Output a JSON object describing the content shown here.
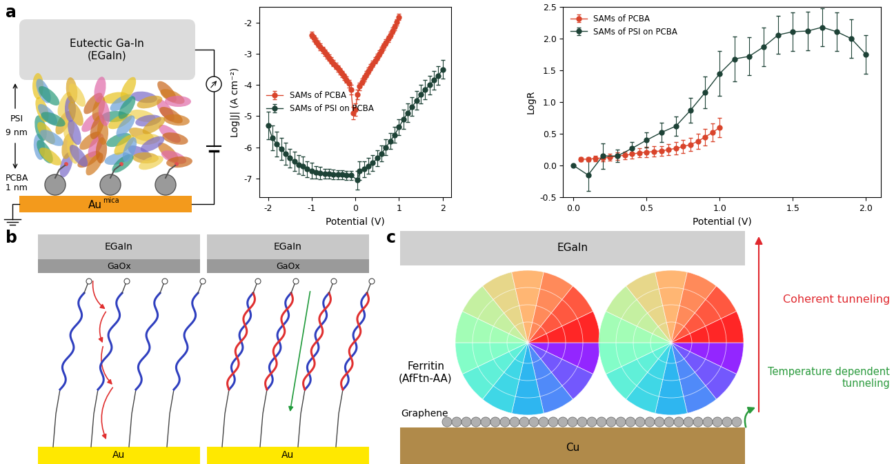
{
  "panel_labels": [
    "a",
    "b",
    "c"
  ],
  "chart_data": [
    {
      "type": "line",
      "xlabel": "Potential (V)",
      "ylabel": "Log|J| (A cm⁻²)",
      "xlim": [
        -2.2,
        2.2
      ],
      "xticks": [
        -2,
        -1,
        0,
        1,
        2
      ],
      "ylim": [
        -7.6,
        -1.5
      ],
      "yticks": [
        -7,
        -6,
        -5,
        -4,
        -3,
        -2
      ],
      "legend": "center left",
      "series": [
        {
          "name": "SAMs of PCBA",
          "color": "#d9442b",
          "marker": "circle",
          "line_style": "solid",
          "x": [
            -1.0,
            -0.95,
            -0.9,
            -0.85,
            -0.8,
            -0.75,
            -0.7,
            -0.65,
            -0.6,
            -0.55,
            -0.5,
            -0.45,
            -0.4,
            -0.35,
            -0.3,
            -0.25,
            -0.2,
            -0.15,
            -0.1,
            -0.05,
            0.0,
            0.05,
            0.1,
            0.15,
            0.2,
            0.25,
            0.3,
            0.35,
            0.4,
            0.45,
            0.5,
            0.55,
            0.6,
            0.65,
            0.7,
            0.75,
            0.8,
            0.85,
            0.9,
            0.95,
            1.0
          ],
          "values": [
            -2.4,
            -2.5,
            -2.6,
            -2.69,
            -2.78,
            -2.87,
            -2.96,
            -3.05,
            -3.13,
            -3.22,
            -3.3,
            -3.39,
            -3.47,
            -3.56,
            -3.65,
            -3.74,
            -3.84,
            -3.96,
            -4.15,
            -4.9,
            -4.8,
            -4.3,
            -4.05,
            -3.9,
            -3.78,
            -3.66,
            -3.55,
            -3.44,
            -3.33,
            -3.22,
            -3.11,
            -3.0,
            -2.88,
            -2.76,
            -2.64,
            -2.52,
            -2.4,
            -2.27,
            -2.14,
            -1.99,
            -1.82
          ],
          "errors": [
            0.1,
            0.1,
            0.1,
            0.1,
            0.1,
            0.1,
            0.1,
            0.1,
            0.1,
            0.1,
            0.1,
            0.1,
            0.1,
            0.1,
            0.1,
            0.1,
            0.1,
            0.12,
            0.15,
            0.2,
            0.2,
            0.15,
            0.12,
            0.1,
            0.1,
            0.1,
            0.1,
            0.1,
            0.1,
            0.1,
            0.1,
            0.1,
            0.1,
            0.1,
            0.1,
            0.1,
            0.1,
            0.1,
            0.1,
            0.1,
            0.1
          ]
        },
        {
          "name": "SAMs of PSI on PCBA",
          "color": "#1d4236",
          "marker": "circle",
          "line_style": "solid",
          "x": [
            -2.0,
            -1.9,
            -1.8,
            -1.7,
            -1.6,
            -1.5,
            -1.4,
            -1.3,
            -1.2,
            -1.1,
            -1.0,
            -0.9,
            -0.8,
            -0.7,
            -0.6,
            -0.5,
            -0.4,
            -0.3,
            -0.2,
            -0.1,
            0.05,
            0.1,
            0.2,
            0.3,
            0.4,
            0.5,
            0.6,
            0.7,
            0.8,
            0.9,
            1.0,
            1.1,
            1.2,
            1.3,
            1.4,
            1.5,
            1.6,
            1.7,
            1.8,
            1.9,
            2.0
          ],
          "values": [
            -5.3,
            -5.7,
            -5.9,
            -6.05,
            -6.2,
            -6.35,
            -6.45,
            -6.55,
            -6.6,
            -6.7,
            -6.75,
            -6.8,
            -6.82,
            -6.85,
            -6.85,
            -6.87,
            -6.88,
            -6.88,
            -6.9,
            -6.9,
            -7.05,
            -6.75,
            -6.7,
            -6.6,
            -6.5,
            -6.35,
            -6.2,
            -6.0,
            -5.8,
            -5.6,
            -5.35,
            -5.1,
            -4.9,
            -4.7,
            -4.5,
            -4.3,
            -4.15,
            -4.0,
            -3.85,
            -3.7,
            -3.5
          ],
          "errors": [
            0.45,
            0.4,
            0.4,
            0.35,
            0.35,
            0.3,
            0.3,
            0.3,
            0.3,
            0.25,
            0.25,
            0.2,
            0.2,
            0.15,
            0.15,
            0.15,
            0.15,
            0.15,
            0.15,
            0.15,
            0.3,
            0.3,
            0.25,
            0.25,
            0.25,
            0.25,
            0.25,
            0.25,
            0.25,
            0.25,
            0.25,
            0.3,
            0.3,
            0.3,
            0.3,
            0.3,
            0.3,
            0.3,
            0.3,
            0.3,
            0.3
          ]
        }
      ]
    },
    {
      "type": "line",
      "xlabel": "Potential (V)",
      "ylabel": "LogR",
      "xlim": [
        -0.07,
        2.1
      ],
      "xticks": [
        {
          "value": 0,
          "label": "0.0"
        },
        {
          "value": 0.5,
          "label": "0.5"
        },
        {
          "value": 1,
          "label": "1.0"
        },
        {
          "value": 1.5,
          "label": "1.5"
        },
        {
          "value": 2,
          "label": "2.0"
        }
      ],
      "ylim": [
        -0.5,
        2.5
      ],
      "yticks": [
        {
          "value": -0.5,
          "label": "-0.5"
        },
        {
          "value": 0,
          "label": "0.0"
        },
        {
          "value": 0.5,
          "label": "0.5"
        },
        {
          "value": 1,
          "label": "1.0"
        },
        {
          "value": 1.5,
          "label": "1.5"
        },
        {
          "value": 2,
          "label": "2.0"
        },
        {
          "value": 2.5,
          "label": "2.5"
        }
      ],
      "legend": "upper left",
      "series": [
        {
          "name": "SAMs of PCBA",
          "color": "#d9442b",
          "marker": "circle",
          "line_style": "solid",
          "x": [
            0.05,
            0.1,
            0.15,
            0.2,
            0.25,
            0.3,
            0.35,
            0.4,
            0.45,
            0.5,
            0.55,
            0.6,
            0.65,
            0.7,
            0.75,
            0.8,
            0.85,
            0.9,
            0.95,
            1.0
          ],
          "values": [
            0.1,
            0.1,
            0.11,
            0.12,
            0.13,
            0.15,
            0.16,
            0.18,
            0.2,
            0.21,
            0.22,
            0.23,
            0.25,
            0.27,
            0.3,
            0.33,
            0.38,
            0.45,
            0.52,
            0.6
          ],
          "errors": [
            0.03,
            0.03,
            0.04,
            0.05,
            0.05,
            0.06,
            0.06,
            0.07,
            0.07,
            0.08,
            0.08,
            0.08,
            0.09,
            0.1,
            0.1,
            0.1,
            0.12,
            0.13,
            0.14,
            0.15
          ]
        },
        {
          "name": "SAMs of PSI on PCBA",
          "color": "#1d4236",
          "marker": "circle",
          "line_style": "solid",
          "x": [
            0.0,
            0.1,
            0.2,
            0.3,
            0.4,
            0.5,
            0.6,
            0.7,
            0.8,
            0.9,
            1.0,
            1.1,
            1.2,
            1.3,
            1.4,
            1.5,
            1.6,
            1.7,
            1.8,
            1.9,
            2.0
          ],
          "values": [
            0.0,
            -0.15,
            0.15,
            0.15,
            0.27,
            0.4,
            0.52,
            0.62,
            0.87,
            1.15,
            1.45,
            1.68,
            1.72,
            1.87,
            2.06,
            2.11,
            2.12,
            2.18,
            2.11,
            2.0,
            1.75
          ],
          "errors": [
            0.0,
            0.25,
            0.2,
            0.1,
            0.1,
            0.12,
            0.15,
            0.15,
            0.2,
            0.25,
            0.35,
            0.35,
            0.3,
            0.3,
            0.3,
            0.3,
            0.3,
            0.3,
            0.3,
            0.3,
            0.3
          ]
        }
      ]
    }
  ],
  "diagram_a": {
    "top_electrode": "Eutectic Ga-In\n(EGaIn)",
    "layers": [
      {
        "label": "PSI",
        "thickness": "9 nm"
      },
      {
        "label": "PCBA",
        "thickness": "1 nm"
      }
    ],
    "substrate": "Au",
    "substrate_sup": "mica"
  },
  "diagram_b": {
    "panels": [
      {
        "top": "EGaIn",
        "oxide": "GaOx",
        "bottom": "Au"
      },
      {
        "top": "EGaIn",
        "oxide": "GaOx",
        "bottom": "Au"
      }
    ]
  },
  "diagram_c": {
    "top": "EGaIn",
    "protein": "Ferritin\n(AfFtn-AA)",
    "layer": "Graphene",
    "substrate": "Cu",
    "arrows": [
      {
        "label": "Coherent tunneling",
        "color": "#e0282e"
      },
      {
        "label": "Temperature dependent\ntunneling",
        "color": "#2a9a3c"
      }
    ]
  }
}
